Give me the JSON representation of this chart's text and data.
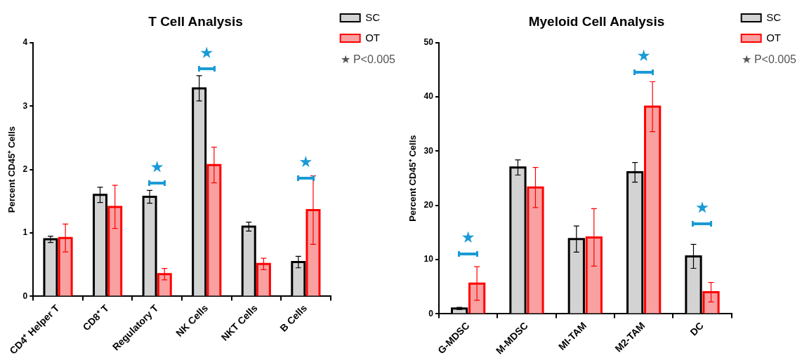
{
  "chart_data": [
    {
      "type": "bar",
      "title": "T Cell Analysis",
      "ylabel": "Percent CD45⁺ Cells",
      "categories": [
        "CD4⁺ Helper T",
        "CD8⁺ T",
        "Regulatory T",
        "NK Cells",
        "NKT Cells",
        "B Cells"
      ],
      "series": [
        {
          "name": "SC",
          "color": "#d3d3d3",
          "values": [
            0.9,
            1.6,
            1.57,
            3.28,
            1.1,
            0.54
          ],
          "errors": [
            0.05,
            0.12,
            0.1,
            0.2,
            0.07,
            0.09
          ]
        },
        {
          "name": "OT",
          "color": "#f9a0a0",
          "values": [
            0.92,
            1.41,
            0.35,
            2.07,
            0.51,
            1.36
          ],
          "errors": [
            0.22,
            0.34,
            0.09,
            0.28,
            0.09,
            0.54
          ]
        }
      ],
      "ylim": [
        0,
        4
      ],
      "yticks": [
        0,
        1,
        2,
        3,
        4
      ],
      "grid": false,
      "legend": "top right",
      "annotations": [
        "★ P<0.005"
      ]
    },
    {
      "type": "bar",
      "title": "Myeloid Cell Analysis",
      "ylabel": "Percent CD45⁺ Cells",
      "categories": [
        "G-MDSC",
        "M-MDSC",
        "MI-TAM",
        "M2-TAM",
        "DC"
      ],
      "series": [
        {
          "name": "SC",
          "color": "#d3d3d3",
          "values": [
            1.0,
            27,
            13.8,
            26.1,
            10.6
          ],
          "errors": [
            0.2,
            1.4,
            2.4,
            1.8,
            2.2
          ]
        },
        {
          "name": "OT",
          "color": "#f9a0a0",
          "values": [
            5.6,
            23.3,
            14.1,
            38.2,
            4.0
          ],
          "errors": [
            3.1,
            3.7,
            5.3,
            4.6,
            1.8
          ]
        }
      ],
      "ylim": [
        0,
        50
      ],
      "yticks": [
        0,
        10,
        20,
        30,
        40,
        50
      ],
      "grid": false,
      "legend": "top right",
      "annotations": [
        "★ P<0.005"
      ]
    }
  ]
}
